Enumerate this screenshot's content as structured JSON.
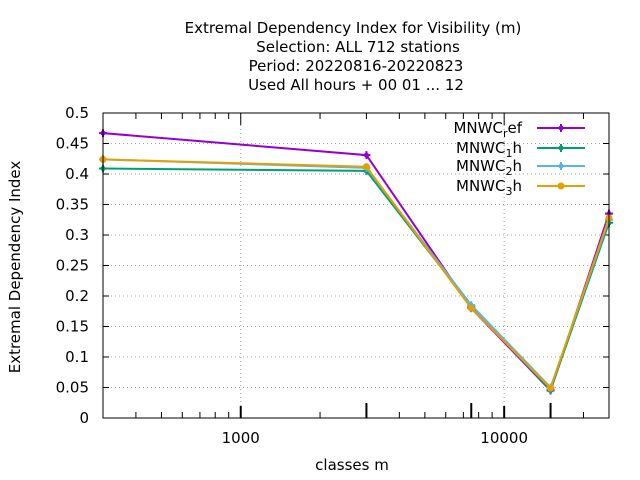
{
  "chart_data": {
    "type": "line",
    "title_lines": [
      "Extremal Dependency Index  for Visibility (m)",
      "Selection: ALL     712 stations",
      "Period: 20220816-20220823",
      "Used  All hours + 00 01 ... 12"
    ],
    "xlabel": "classes m",
    "ylabel": "Extremal Dependency Index",
    "x_scale": "log",
    "xlim": [
      300,
      25000
    ],
    "ylim": [
      0,
      0.5
    ],
    "x_tick_labels": [
      "1000",
      "10000"
    ],
    "y_tick_labels": [
      "0",
      "0.05",
      "0.1",
      "0.15",
      "0.2",
      "0.25",
      "0.3",
      "0.35",
      "0.4",
      "0.45",
      "0.5"
    ],
    "grid": true,
    "legend_position": "top-right",
    "x": [
      300,
      3000,
      7500,
      15000,
      25000
    ],
    "series": [
      {
        "name_base": "MNWC",
        "name_sub": "r",
        "name_tail": "ef",
        "color": "#9400d3",
        "marker": "plus",
        "values": [
          0.467,
          0.431,
          0.18,
          0.045,
          0.335
        ]
      },
      {
        "name_base": "MNWC",
        "name_sub": "1",
        "name_tail": "h",
        "color": "#009e73",
        "marker": "plus",
        "values": [
          0.409,
          0.405,
          0.183,
          0.046,
          0.32
        ]
      },
      {
        "name_base": "MNWC",
        "name_sub": "2",
        "name_tail": "h",
        "color": "#56b4e9",
        "marker": "plus",
        "values": [
          0.424,
          0.41,
          0.185,
          0.05,
          0.325
        ]
      },
      {
        "name_base": "MNWC",
        "name_sub": "3",
        "name_tail": "h",
        "color": "#e69f00",
        "marker": "circle",
        "values": [
          0.424,
          0.412,
          0.18,
          0.049,
          0.328
        ]
      }
    ]
  }
}
